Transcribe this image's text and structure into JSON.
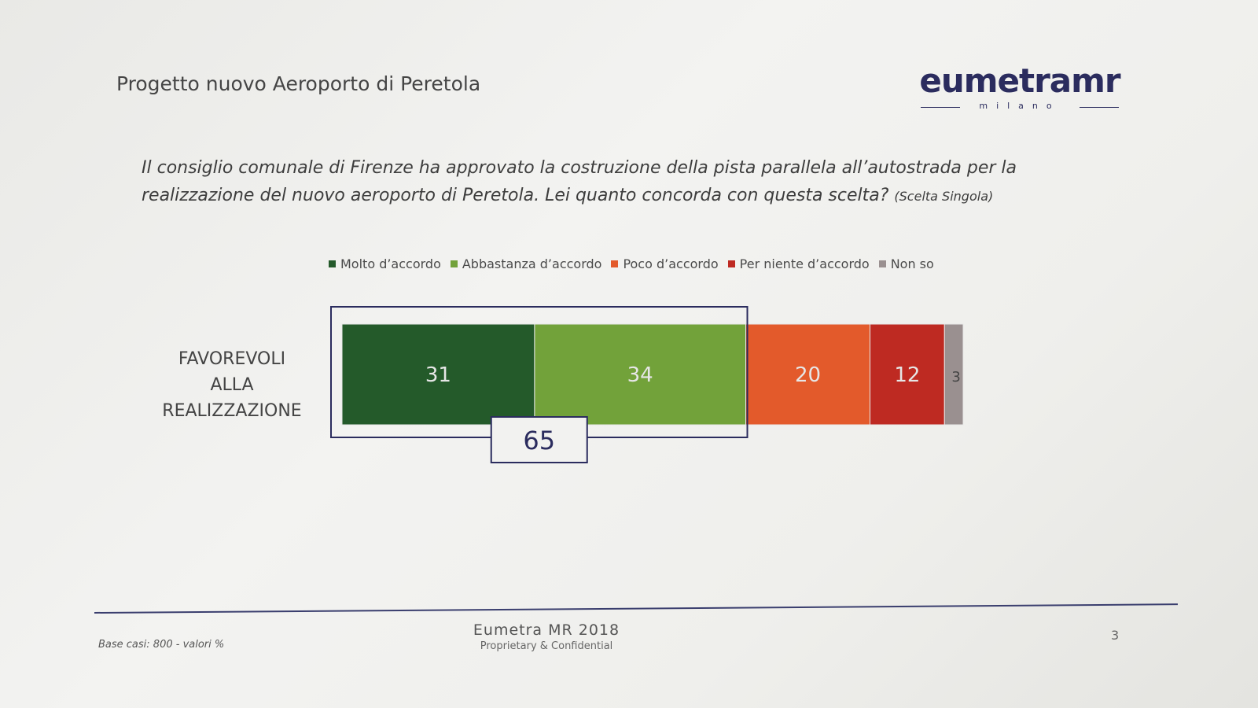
{
  "slide": {
    "title": "Progetto nuovo Aeroporto di Peretola",
    "question": "Il consiglio comunale di Firenze ha  approvato la costruzione della pista parallela all’autostrada per la realizzazione del nuovo aeroporto di Peretola. Lei quanto concorda con questa scelta?",
    "question_note": "(Scelta Singola)"
  },
  "logo": {
    "word": "eumetramr",
    "sub": "milano"
  },
  "chart_data": {
    "type": "bar",
    "orientation": "horizontal-stacked",
    "categories": [
      "FAVOREVOLI ALLA REALIZZAZIONE"
    ],
    "category_label_lines": [
      "FAVOREVOLI",
      "ALLA",
      "REALIZZAZIONE"
    ],
    "series": [
      {
        "name": "Molto d’accordo",
        "values": [
          31
        ],
        "color": "#245a2a"
      },
      {
        "name": "Abbastanza d’accordo",
        "values": [
          34
        ],
        "color": "#72a23a"
      },
      {
        "name": "Poco d’accordo",
        "values": [
          20
        ],
        "color": "#e35a2b"
      },
      {
        "name": "Per niente d’accordo",
        "values": [
          12
        ],
        "color": "#be2a22"
      },
      {
        "name": "Non so",
        "values": [
          3
        ],
        "color": "#9a9090"
      }
    ],
    "highlight": {
      "label": "65",
      "covers": [
        "Molto d’accordo",
        "Abbastanza d’accordo"
      ],
      "border_color": "#2b2c5e"
    },
    "legend": "top",
    "xlim": [
      0,
      100
    ]
  },
  "footer": {
    "base": "Base casi: 800 - valori %",
    "brand": "Eumetra MR 2018",
    "confidential": "Proprietary & Confidential",
    "page": "3"
  }
}
